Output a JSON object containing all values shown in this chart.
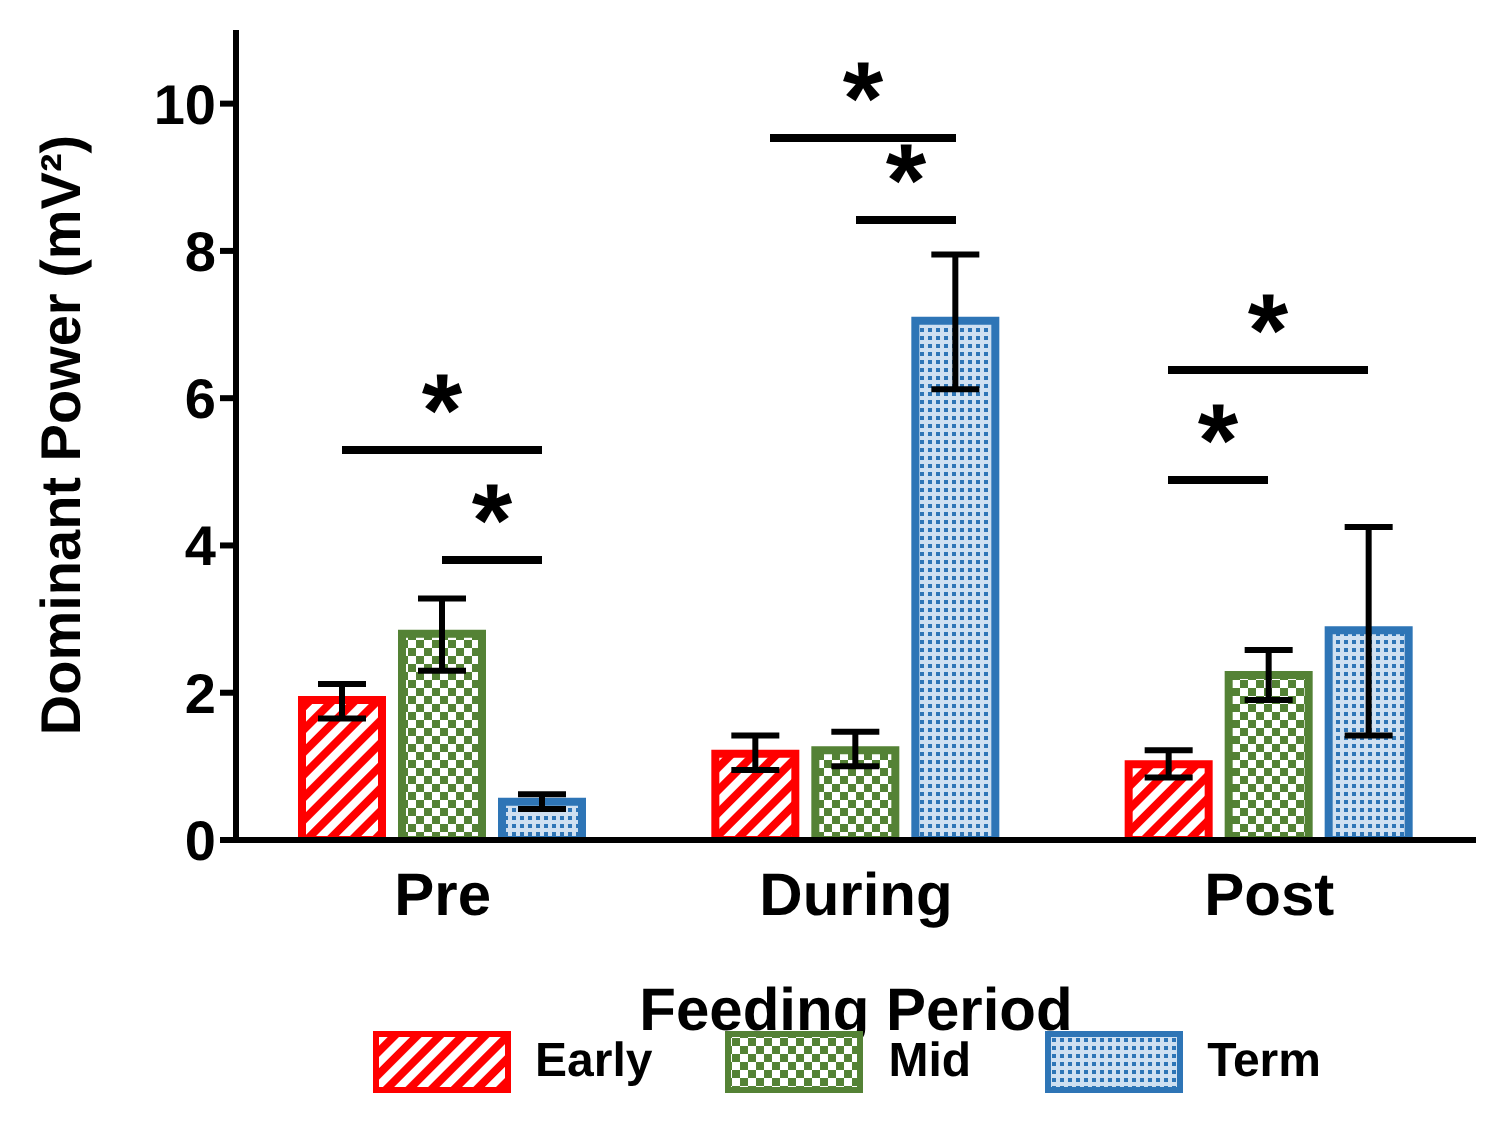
{
  "chart_data": {
    "type": "bar",
    "xlabel": "Feeding Period",
    "ylabel": "Dominant Power (mV²)",
    "categories": [
      "Pre",
      "During",
      "Post"
    ],
    "series": [
      {
        "name": "Early",
        "color": "#ff0000",
        "values": [
          1.9,
          1.17,
          1.03
        ],
        "errors": [
          [
            1.65,
            2.12
          ],
          [
            0.95,
            1.42
          ],
          [
            0.85,
            1.22
          ]
        ]
      },
      {
        "name": "Mid",
        "color": "#548235",
        "values": [
          2.8,
          1.22,
          2.24
        ],
        "errors": [
          [
            2.3,
            3.28
          ],
          [
            1.0,
            1.47
          ],
          [
            1.9,
            2.58
          ]
        ]
      },
      {
        "name": "Term",
        "color": "#2e75b6",
        "values": [
          0.52,
          7.05,
          2.85
        ],
        "errors": [
          [
            0.42,
            0.62
          ],
          [
            6.12,
            7.95
          ],
          [
            1.42,
            4.25
          ]
        ]
      }
    ],
    "ylim": [
      0,
      11
    ],
    "yticks": [
      0,
      2,
      4,
      6,
      8,
      10
    ],
    "grid": false,
    "legend": "bottom",
    "annotations": [
      "*",
      "*",
      "*",
      "*",
      "*",
      "*"
    ]
  }
}
